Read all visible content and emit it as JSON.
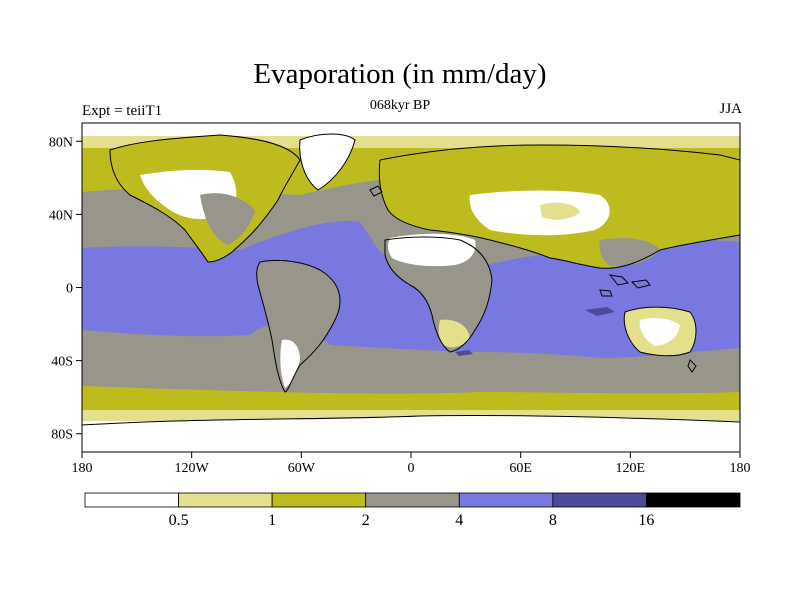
{
  "title": "Evaporation (in mm/day)",
  "subtitle": "068kyr BP",
  "left_label": "Expt = teiiT1",
  "right_label": "JJA",
  "map": {
    "lat_ticks": [
      {
        "lat": 80,
        "label": "80N"
      },
      {
        "lat": 40,
        "label": "40N"
      },
      {
        "lat": 0,
        "label": "0"
      },
      {
        "lat": -40,
        "label": "40S"
      },
      {
        "lat": -80,
        "label": "80S"
      }
    ],
    "lon_ticks": [
      {
        "lon": -180,
        "label": "180"
      },
      {
        "lon": -120,
        "label": "120W"
      },
      {
        "lon": -60,
        "label": "60W"
      },
      {
        "lon": 0,
        "label": "0"
      },
      {
        "lon": 60,
        "label": "60E"
      },
      {
        "lon": 120,
        "label": "120E"
      },
      {
        "lon": 180,
        "label": "180"
      }
    ],
    "lon_range": [
      -180,
      180
    ],
    "lat_range": [
      -90,
      90
    ]
  },
  "colorbar": {
    "colors": [
      "#ffffff",
      "#e3df8c",
      "#bdbb1e",
      "#98968a",
      "#7878e0",
      "#4b4b9a",
      "#000000"
    ],
    "levels": [
      "0.5",
      "1",
      "2",
      "4",
      "8",
      "16"
    ]
  }
}
